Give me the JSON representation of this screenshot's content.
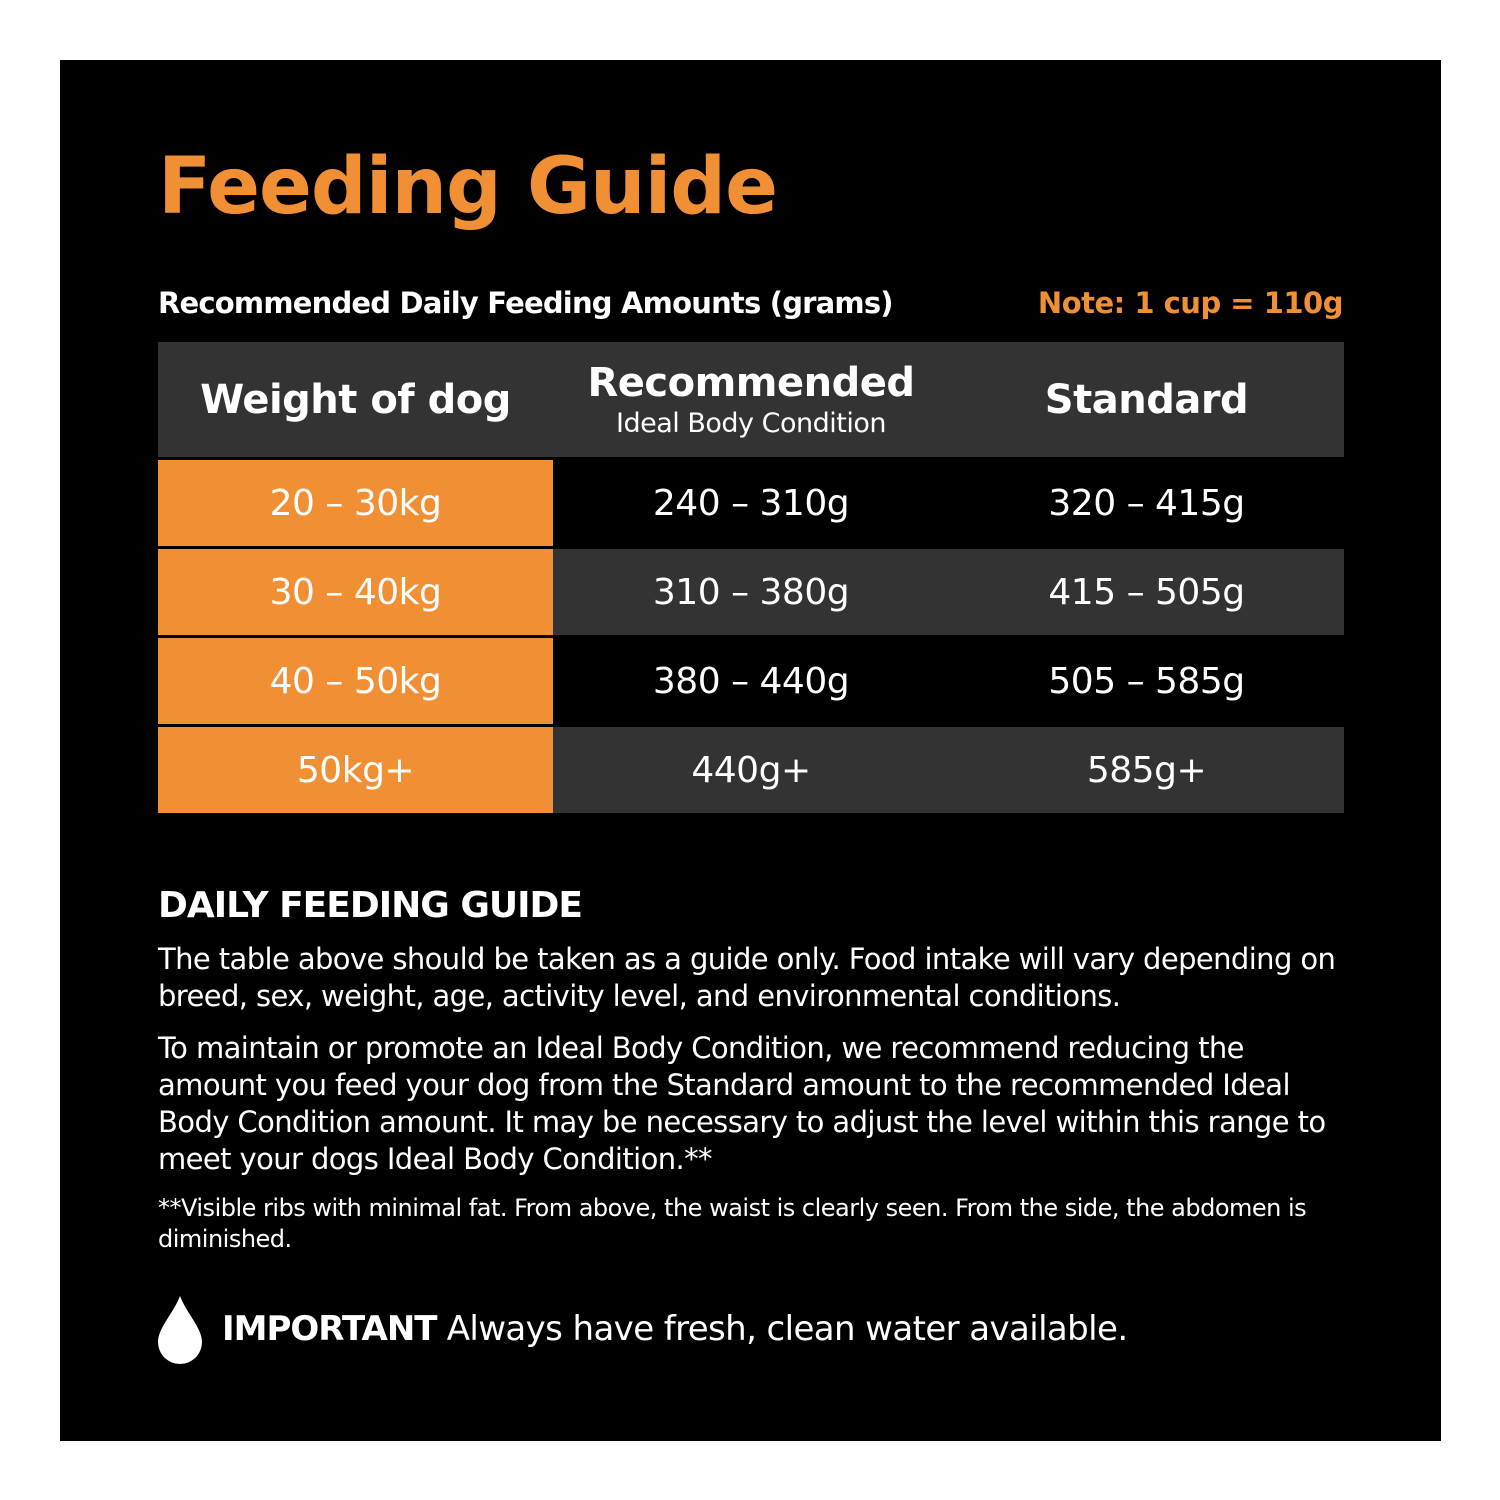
{
  "title": "Feeding Guide",
  "subtitle": "Recommended Daily Feeding Amounts (grams)",
  "note": "Note: 1 cup = 110g",
  "table": {
    "headers": {
      "weight": "Weight of dog",
      "recommended": "Recommended",
      "recommended_sub": "Ideal Body Condition",
      "standard": "Standard"
    },
    "rows": [
      {
        "weight": "20 – 30kg",
        "recommended": "240 – 310g",
        "standard": "320 – 415g"
      },
      {
        "weight": "30 – 40kg",
        "recommended": "310 – 380g",
        "standard": "415 – 505g"
      },
      {
        "weight": "40 – 50kg",
        "recommended": "380 – 440g",
        "standard": "505 – 585g"
      },
      {
        "weight": "50kg+",
        "recommended": "440g+",
        "standard": "585g+"
      }
    ]
  },
  "guide": {
    "heading": "DAILY FEEDING GUIDE",
    "paragraph1": "The table above should be taken as a guide only. Food intake will vary depending on breed, sex, weight, age, activity level, and environmental conditions.",
    "paragraph2": "To maintain or promote an Ideal Body Condition, we recommend reducing the amount you feed your dog from the Standard amount to the recommended Ideal Body Condition amount. It may be necessary to adjust the level within this range to meet your dogs Ideal Body Condition.**",
    "footnote": "**Visible ribs with minimal fat. From above, the waist is clearly seen. From the side, the abdomen is diminished."
  },
  "important": {
    "icon": "water-drop-icon",
    "label": "IMPORTANT",
    "text": "Always have fresh, clean water available."
  },
  "colors": {
    "accent": "#f18f34",
    "background": "#000000",
    "row_grey": "#333333",
    "text": "#ffffff"
  }
}
